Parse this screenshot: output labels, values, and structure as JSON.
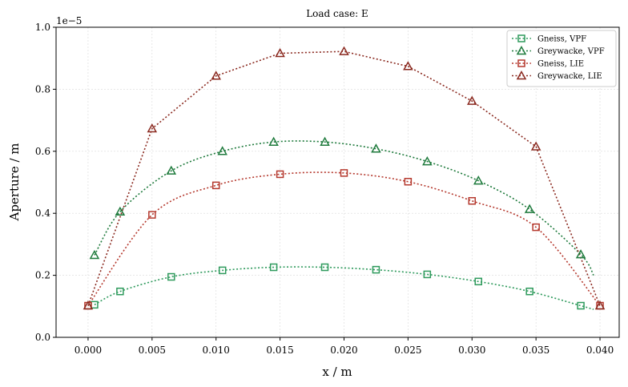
{
  "chart_data": {
    "type": "line",
    "title": "Load case: E",
    "xlabel": "x / m",
    "ylabel": "Aperture / m",
    "y_scale_label": "1e−5",
    "xlim": [
      -0.0025,
      0.0415
    ],
    "ylim": [
      0,
      1.0
    ],
    "x_ticks": [
      0.0,
      0.005,
      0.01,
      0.015,
      0.02,
      0.025,
      0.03,
      0.035,
      0.04
    ],
    "x_tick_labels": [
      "0.000",
      "0.005",
      "0.010",
      "0.015",
      "0.020",
      "0.025",
      "0.030",
      "0.035",
      "0.040"
    ],
    "y_ticks": [
      0.0,
      0.2,
      0.4,
      0.6,
      0.8,
      1.0
    ],
    "y_tick_labels": [
      "0.0",
      "0.2",
      "0.4",
      "0.6",
      "0.8",
      "1.0"
    ],
    "grid": true,
    "legend_position": "top-right",
    "series": [
      {
        "name": "Gneiss, VPF",
        "color": "#2e9a5c",
        "marker": "square",
        "smooth": true,
        "x": [
          0.0005,
          0.0025,
          0.0065,
          0.0105,
          0.0145,
          0.0185,
          0.0225,
          0.0265,
          0.0305,
          0.0345,
          0.0385
        ],
        "y": [
          0.105,
          0.148,
          0.195,
          0.216,
          0.226,
          0.226,
          0.218,
          0.203,
          0.18,
          0.148,
          0.102
        ],
        "curve_x_end": 0.0395,
        "curve_y_end": 0.09
      },
      {
        "name": "Greywacke, VPF",
        "color": "#1e7a3c",
        "marker": "triangle",
        "smooth": true,
        "x": [
          0.0005,
          0.0025,
          0.0065,
          0.0105,
          0.0145,
          0.0185,
          0.0225,
          0.0265,
          0.0305,
          0.0345,
          0.0385
        ],
        "y": [
          0.265,
          0.405,
          0.537,
          0.6,
          0.63,
          0.63,
          0.608,
          0.567,
          0.505,
          0.413,
          0.267
        ],
        "curve_x_end": 0.0395,
        "curve_y_end": 0.2
      },
      {
        "name": "Gneiss, LIE",
        "color": "#b5392e",
        "marker": "square",
        "smooth": true,
        "x": [
          0.0,
          0.005,
          0.01,
          0.015,
          0.02,
          0.025,
          0.03,
          0.035,
          0.04
        ],
        "y": [
          0.102,
          0.395,
          0.49,
          0.526,
          0.53,
          0.502,
          0.44,
          0.355,
          0.102
        ]
      },
      {
        "name": "Greywacke, LIE",
        "color": "#8b2a20",
        "marker": "triangle",
        "smooth": false,
        "x": [
          0.0,
          0.005,
          0.01,
          0.015,
          0.02,
          0.025,
          0.03,
          0.035,
          0.04
        ],
        "y": [
          0.102,
          0.673,
          0.843,
          0.916,
          0.922,
          0.874,
          0.762,
          0.615,
          0.102
        ]
      }
    ]
  }
}
